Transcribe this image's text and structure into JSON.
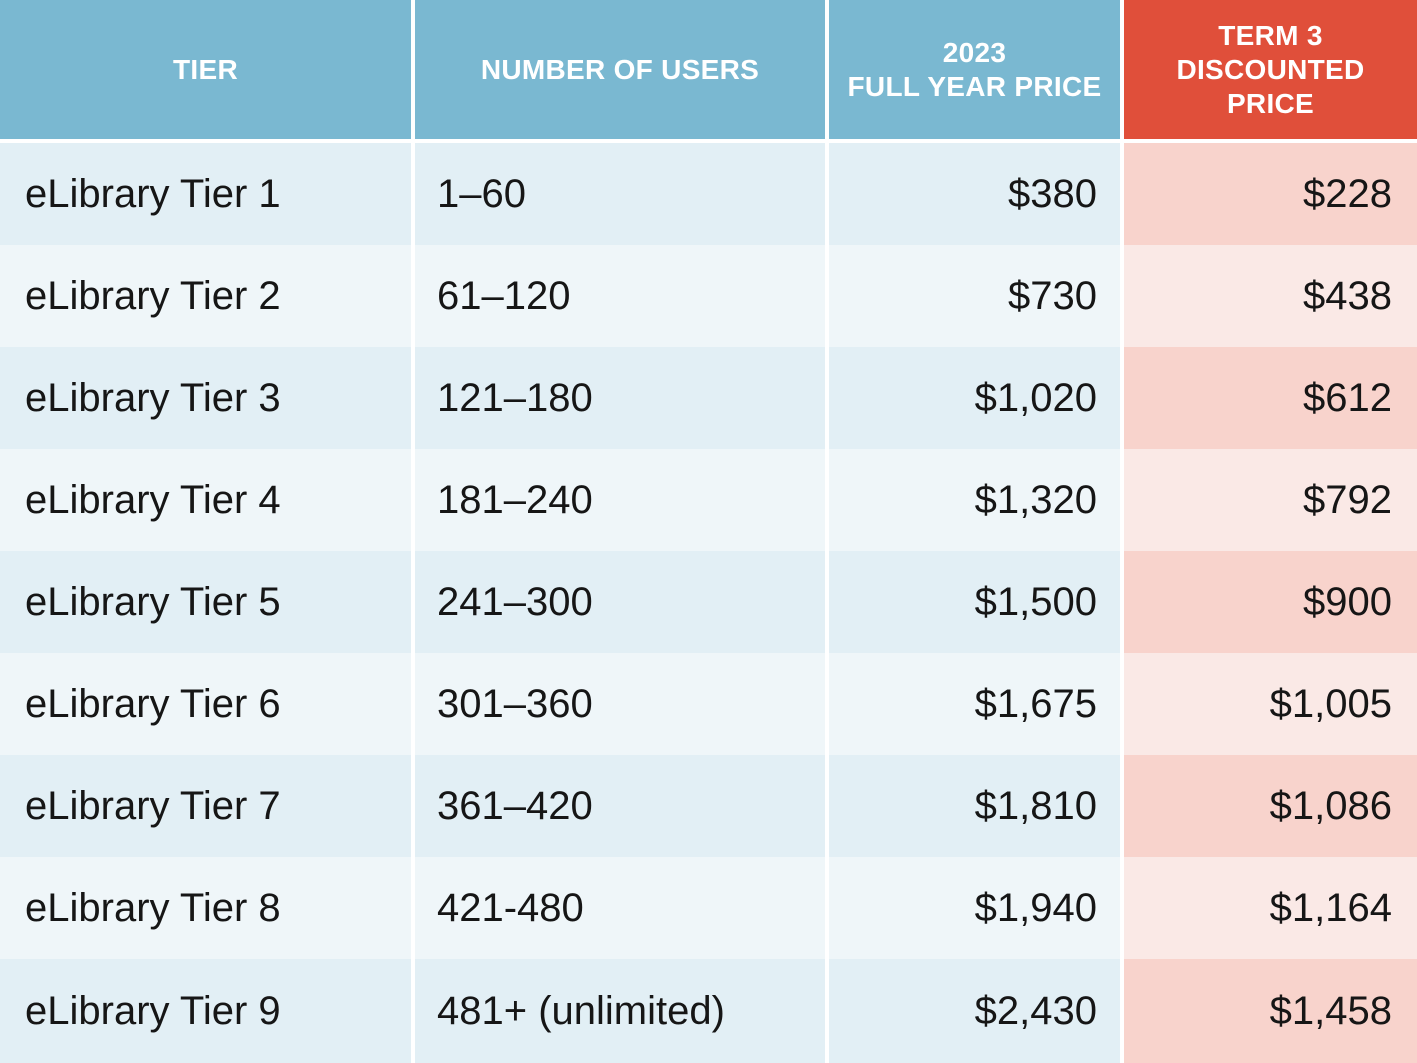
{
  "header": {
    "tier": "TIER",
    "users": "NUMBER OF USERS",
    "full_year": "2023\nFULL YEAR PRICE",
    "discounted": "TERM 3\nDISCOUNTED\nPRICE"
  },
  "colors": {
    "header_blue": "#7ab8d1",
    "header_red": "#e04f3a",
    "row_blue_dark": "#e2eff5",
    "row_blue_light": "#eff6f9",
    "row_red_dark": "#f8d3cc",
    "row_red_light": "#fae9e6"
  },
  "rows": [
    {
      "tier": "eLibrary Tier 1",
      "users": "1–60",
      "full": "$380",
      "disc": "$228"
    },
    {
      "tier": "eLibrary Tier 2",
      "users": "61–120",
      "full": "$730",
      "disc": "$438"
    },
    {
      "tier": "eLibrary Tier 3",
      "users": "121–180",
      "full": "$1,020",
      "disc": "$612"
    },
    {
      "tier": "eLibrary Tier 4",
      "users": "181–240",
      "full": "$1,320",
      "disc": "$792"
    },
    {
      "tier": "eLibrary Tier 5",
      "users": "241–300",
      "full": "$1,500",
      "disc": "$900"
    },
    {
      "tier": "eLibrary Tier 6",
      "users": "301–360",
      "full": "$1,675",
      "disc": "$1,005"
    },
    {
      "tier": "eLibrary Tier 7",
      "users": "361–420",
      "full": "$1,810",
      "disc": "$1,086"
    },
    {
      "tier": "eLibrary Tier 8",
      "users": "421-480",
      "full": "$1,940",
      "disc": "$1,164"
    },
    {
      "tier": "eLibrary Tier 9",
      "users": "481+ (unlimited)",
      "full": "$2,430",
      "disc": "$1,458"
    }
  ]
}
